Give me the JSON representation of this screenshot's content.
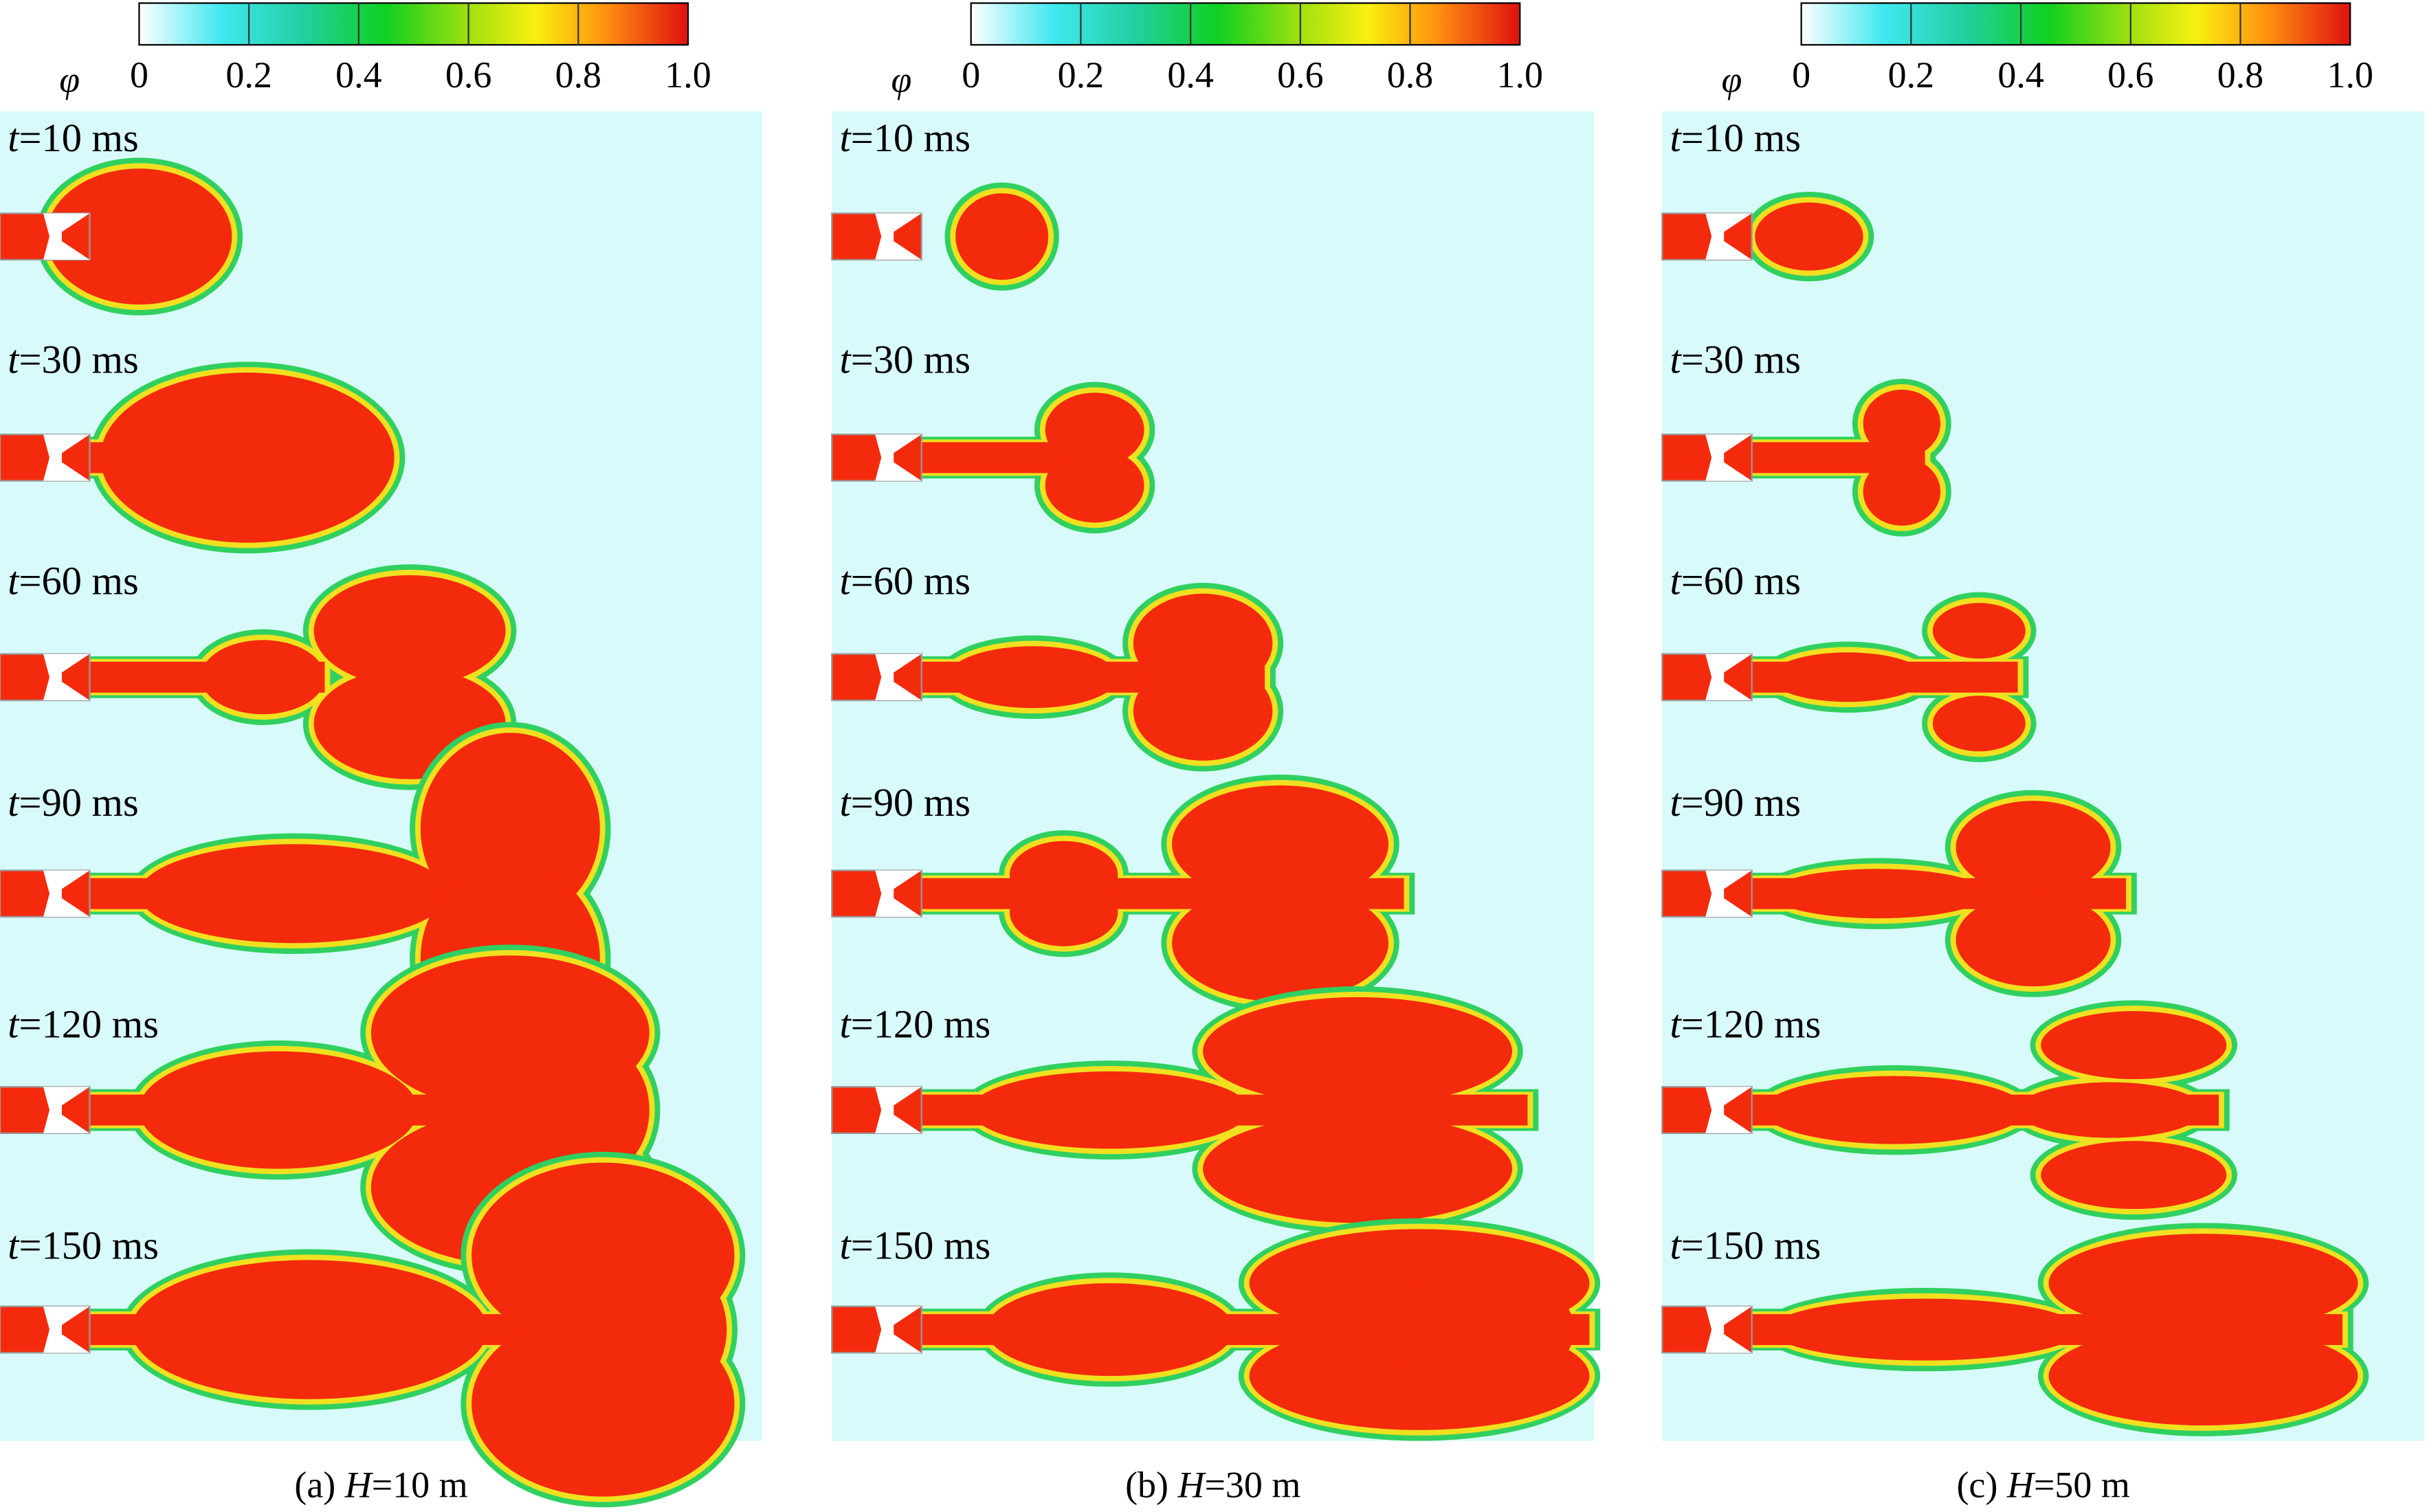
{
  "panels": [
    {
      "colorbar": {
        "symbol": "φ",
        "ticks": [
          "0",
          "0.2",
          "0.4",
          "0.6",
          "0.8",
          "1.0"
        ]
      },
      "frames": [
        {
          "var": "t",
          "rest": "=10 ms"
        },
        {
          "var": "t",
          "rest": "=30 ms"
        },
        {
          "var": "t",
          "rest": "=60 ms"
        },
        {
          "var": "t",
          "rest": "=90 ms"
        },
        {
          "var": "t",
          "rest": "=120 ms"
        },
        {
          "var": "t",
          "rest": "=150 ms"
        }
      ],
      "caption": {
        "prefix": "(a) ",
        "var": "H",
        "rest": "=10 m"
      }
    },
    {
      "colorbar": {
        "symbol": "φ",
        "ticks": [
          "0",
          "0.2",
          "0.4",
          "0.6",
          "0.8",
          "1.0"
        ]
      },
      "frames": [
        {
          "var": "t",
          "rest": "=10 ms"
        },
        {
          "var": "t",
          "rest": "=30 ms"
        },
        {
          "var": "t",
          "rest": "=60 ms"
        },
        {
          "var": "t",
          "rest": "=90 ms"
        },
        {
          "var": "t",
          "rest": "=120 ms"
        },
        {
          "var": "t",
          "rest": "=150 ms"
        }
      ],
      "caption": {
        "prefix": "(b) ",
        "var": "H",
        "rest": "=30 m"
      }
    },
    {
      "colorbar": {
        "symbol": "φ",
        "ticks": [
          "0",
          "0.2",
          "0.4",
          "0.6",
          "0.8",
          "1.0"
        ]
      },
      "frames": [
        {
          "var": "t",
          "rest": "=10 ms"
        },
        {
          "var": "t",
          "rest": "=30 ms"
        },
        {
          "var": "t",
          "rest": "=60 ms"
        },
        {
          "var": "t",
          "rest": "=90 ms"
        },
        {
          "var": "t",
          "rest": "=120 ms"
        },
        {
          "var": "t",
          "rest": "=150 ms"
        }
      ],
      "caption": {
        "prefix": "(c) ",
        "var": "H",
        "rest": "=50 m"
      }
    }
  ]
}
